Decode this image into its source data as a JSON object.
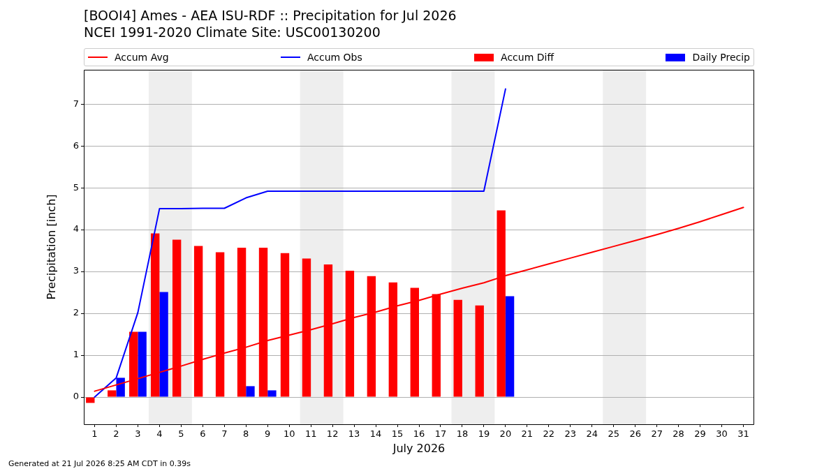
{
  "chart_data": {
    "type": "bar",
    "title": "[BOOI4] Ames - AEA ISU-RDF :: Precipitation for Jul 2026",
    "subtitle": "NCEI 1991-2020 Climate Site: USC00130200",
    "xlabel": "July 2026",
    "ylabel": "Precipitation [inch]",
    "annotations": [
      "Generated at 21 Jul 2026 8:25 AM CDT in 0.39s"
    ],
    "x": [
      1,
      2,
      3,
      4,
      5,
      6,
      7,
      8,
      9,
      10,
      11,
      12,
      13,
      14,
      15,
      16,
      17,
      18,
      19,
      20,
      21,
      22,
      23,
      24,
      25,
      26,
      27,
      28,
      29,
      30,
      31
    ],
    "series": [
      {
        "name": "Accum Avg",
        "type": "line",
        "color": "#ff0000",
        "values": [
          0.14,
          0.29,
          0.44,
          0.59,
          0.74,
          0.9,
          1.05,
          1.19,
          1.35,
          1.48,
          1.61,
          1.75,
          1.9,
          2.03,
          2.18,
          2.31,
          2.46,
          2.6,
          2.73,
          2.9,
          3.04,
          3.18,
          3.32,
          3.46,
          3.6,
          3.74,
          3.88,
          4.03,
          4.19,
          4.36,
          4.53
        ]
      },
      {
        "name": "Accum Obs",
        "type": "line",
        "color": "#0000ff",
        "values": [
          0,
          0.46,
          2.02,
          4.5,
          4.5,
          4.51,
          4.51,
          4.76,
          4.92,
          4.92,
          4.92,
          4.92,
          4.92,
          4.92,
          4.92,
          4.92,
          4.92,
          4.92,
          4.92,
          7.36,
          null,
          null,
          null,
          null,
          null,
          null,
          null,
          null,
          null,
          null,
          null
        ]
      },
      {
        "name": "Accum Diff",
        "color": "#ff0000",
        "values": [
          -0.14,
          0.16,
          1.56,
          3.91,
          3.76,
          3.61,
          3.46,
          3.57,
          3.57,
          3.44,
          3.31,
          3.17,
          3.02,
          2.89,
          2.74,
          2.61,
          2.46,
          2.32,
          2.19,
          4.46,
          null,
          null,
          null,
          null,
          null,
          null,
          null,
          null,
          null,
          null,
          null
        ]
      },
      {
        "name": "Daily Precip",
        "color": "#0000ff",
        "values": [
          0,
          0.46,
          1.56,
          2.51,
          0,
          0,
          0,
          0.26,
          0.16,
          0,
          0,
          0,
          0,
          0,
          0,
          0,
          0,
          0,
          0,
          2.41,
          null,
          null,
          null,
          null,
          null,
          null,
          null,
          null,
          null,
          null,
          null
        ]
      }
    ],
    "xlim": [
      0.5,
      31.5
    ],
    "xticks": [
      1,
      2,
      3,
      4,
      5,
      6,
      7,
      8,
      9,
      10,
      11,
      12,
      13,
      14,
      15,
      16,
      17,
      18,
      19,
      20,
      21,
      22,
      23,
      24,
      25,
      26,
      27,
      28,
      29,
      30,
      31
    ],
    "ylim": [
      -0.65,
      7.82
    ],
    "yticks": [
      0,
      1,
      2,
      3,
      4,
      5,
      6,
      7
    ],
    "bands": [
      {
        "axis": "x",
        "from": 3.5,
        "to": 5.5,
        "color": "#eeeeee"
      },
      {
        "axis": "x",
        "from": 10.5,
        "to": 12.5,
        "color": "#eeeeee"
      },
      {
        "axis": "x",
        "from": 17.5,
        "to": 19.5,
        "color": "#eeeeee"
      },
      {
        "axis": "x",
        "from": 24.5,
        "to": 26.5,
        "color": "#eeeeee"
      }
    ],
    "grid": "y",
    "legend": "top",
    "marker": "none",
    "line_style": "solid"
  }
}
